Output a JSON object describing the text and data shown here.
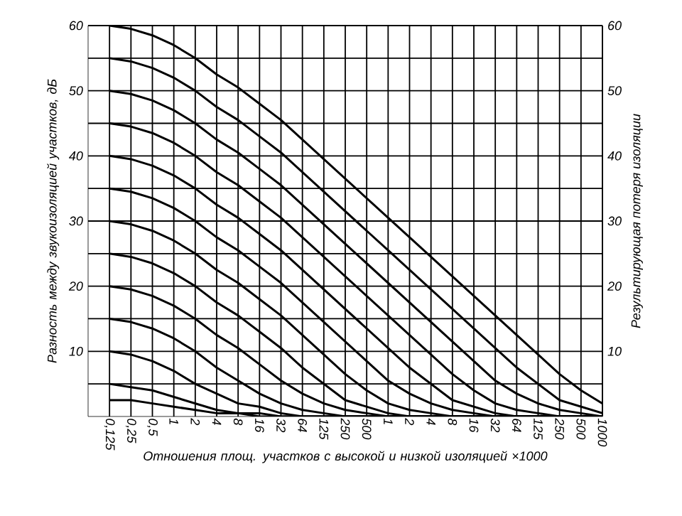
{
  "chart_data": {
    "type": "line",
    "xlabel": "Отношения площ. участков с высокой и низкой изоляцией ×1000",
    "ylabel": "Разность между звукоизоляцией участков, дБ",
    "y2label": "Результирующая потеря изоляции",
    "categories": [
      "0,125",
      "0,25",
      "0,5",
      "1",
      "2",
      "4",
      "8",
      "16",
      "32",
      "64",
      "125",
      "250",
      "500",
      "1",
      "2",
      "4",
      "8",
      "16",
      "32",
      "64",
      "125",
      "250",
      "500",
      "1000"
    ],
    "ylim": [
      0,
      60
    ],
    "yticks": [
      {
        "value": 5,
        "label": null
      },
      10,
      {
        "value": 15,
        "label": null
      },
      20,
      {
        "value": 25,
        "label": null
      },
      30,
      {
        "value": 35,
        "label": null
      },
      40,
      {
        "value": 45,
        "label": null
      },
      50,
      {
        "value": 55,
        "label": null
      },
      60
    ],
    "y2lim": [
      0,
      60
    ],
    "y2ticks": [
      10,
      20,
      30,
      40,
      50,
      60
    ],
    "grid": true,
    "marker": "none",
    "series": [
      {
        "color": "#000000",
        "values": [
          60,
          59.5,
          58.5,
          57,
          55,
          52.5,
          50.5,
          48,
          45.5,
          42.5,
          39.5,
          36.5,
          33.5,
          30.5,
          27.5,
          24.5,
          21.5,
          18.5,
          15.5,
          12.5,
          9.5,
          6.5,
          4,
          2
        ]
      },
      {
        "color": "#000000",
        "values": [
          55,
          54.5,
          53.5,
          52,
          50,
          47.5,
          45.5,
          43,
          40.5,
          37.5,
          34.5,
          31.5,
          28.5,
          25.5,
          22.5,
          19.5,
          16.5,
          13.5,
          10.5,
          7.5,
          5,
          2.5,
          1.5,
          0.5
        ]
      },
      {
        "color": "#000000",
        "values": [
          50,
          49.5,
          48.5,
          47,
          45,
          42.5,
          40.5,
          38,
          35.5,
          32.5,
          29.5,
          26.5,
          23.5,
          20.5,
          17.5,
          14.5,
          11.5,
          8.5,
          5.5,
          3.5,
          2,
          1,
          0.5,
          0
        ]
      },
      {
        "color": "#000000",
        "values": [
          45,
          44.5,
          43.5,
          42,
          40,
          37.5,
          35.5,
          33,
          30.5,
          27.5,
          24.5,
          21.5,
          18.5,
          15.5,
          12.5,
          9.5,
          6.5,
          4,
          2,
          1,
          0.5,
          0,
          0,
          0
        ]
      },
      {
        "color": "#000000",
        "values": [
          40,
          39.5,
          38.5,
          37,
          35,
          32.5,
          30.5,
          28,
          25.5,
          22.5,
          19.5,
          16.5,
          13.5,
          10.5,
          7.5,
          5,
          2.5,
          1.5,
          0.5,
          0,
          0,
          0,
          0,
          0
        ]
      },
      {
        "color": "#000000",
        "values": [
          35,
          34.5,
          33.5,
          32,
          30,
          27.5,
          25.5,
          23,
          20.5,
          17.5,
          14.5,
          11.5,
          8.5,
          5.5,
          3.5,
          2,
          1,
          0.5,
          0,
          0,
          0,
          0,
          0,
          0
        ]
      },
      {
        "color": "#000000",
        "values": [
          30,
          29.5,
          28.5,
          27,
          25,
          22.5,
          20.5,
          18,
          15.5,
          12.5,
          9.5,
          6.5,
          4,
          2,
          1,
          0.5,
          0,
          0,
          0,
          0,
          0,
          0,
          0,
          0
        ]
      },
      {
        "color": "#000000",
        "values": [
          25,
          24.5,
          23.5,
          22,
          20,
          17.5,
          15.5,
          13,
          10.5,
          7.5,
          5,
          2.5,
          1.5,
          0.5,
          0,
          0,
          0,
          0,
          0,
          0,
          0,
          0,
          0,
          0
        ]
      },
      {
        "color": "#000000",
        "values": [
          20,
          19.5,
          18.5,
          17,
          15,
          12.5,
          10.5,
          8,
          5.5,
          3.5,
          2,
          1,
          0.5,
          0,
          0,
          0,
          0,
          0,
          0,
          0,
          0,
          0,
          0,
          0
        ]
      },
      {
        "color": "#000000",
        "values": [
          15,
          14.5,
          13.5,
          12,
          10,
          7.5,
          5.5,
          3.5,
          2,
          1,
          0.5,
          0,
          0,
          0,
          0,
          0,
          0,
          0,
          0,
          0,
          0,
          0,
          0,
          0
        ]
      },
      {
        "color": "#000000",
        "values": [
          10,
          9.5,
          8.5,
          7,
          5,
          3.5,
          2,
          1.5,
          0.5,
          0,
          0,
          0,
          0,
          0,
          0,
          0,
          0,
          0,
          0,
          0,
          0,
          0,
          0,
          0
        ]
      },
      {
        "color": "#000000",
        "values": [
          5,
          4.5,
          4,
          3,
          2,
          1,
          0.5,
          0.5,
          0,
          0,
          0,
          0,
          0,
          0,
          0,
          0,
          0,
          0,
          0,
          0,
          0,
          0,
          0,
          0
        ]
      },
      {
        "color": "#000000",
        "values": [
          2.5,
          2.5,
          2,
          1.5,
          1,
          0.5,
          0.5,
          0,
          0,
          0,
          0,
          0,
          0,
          0,
          0,
          0,
          0,
          0,
          0,
          0,
          0,
          0,
          0,
          0
        ]
      }
    ]
  }
}
